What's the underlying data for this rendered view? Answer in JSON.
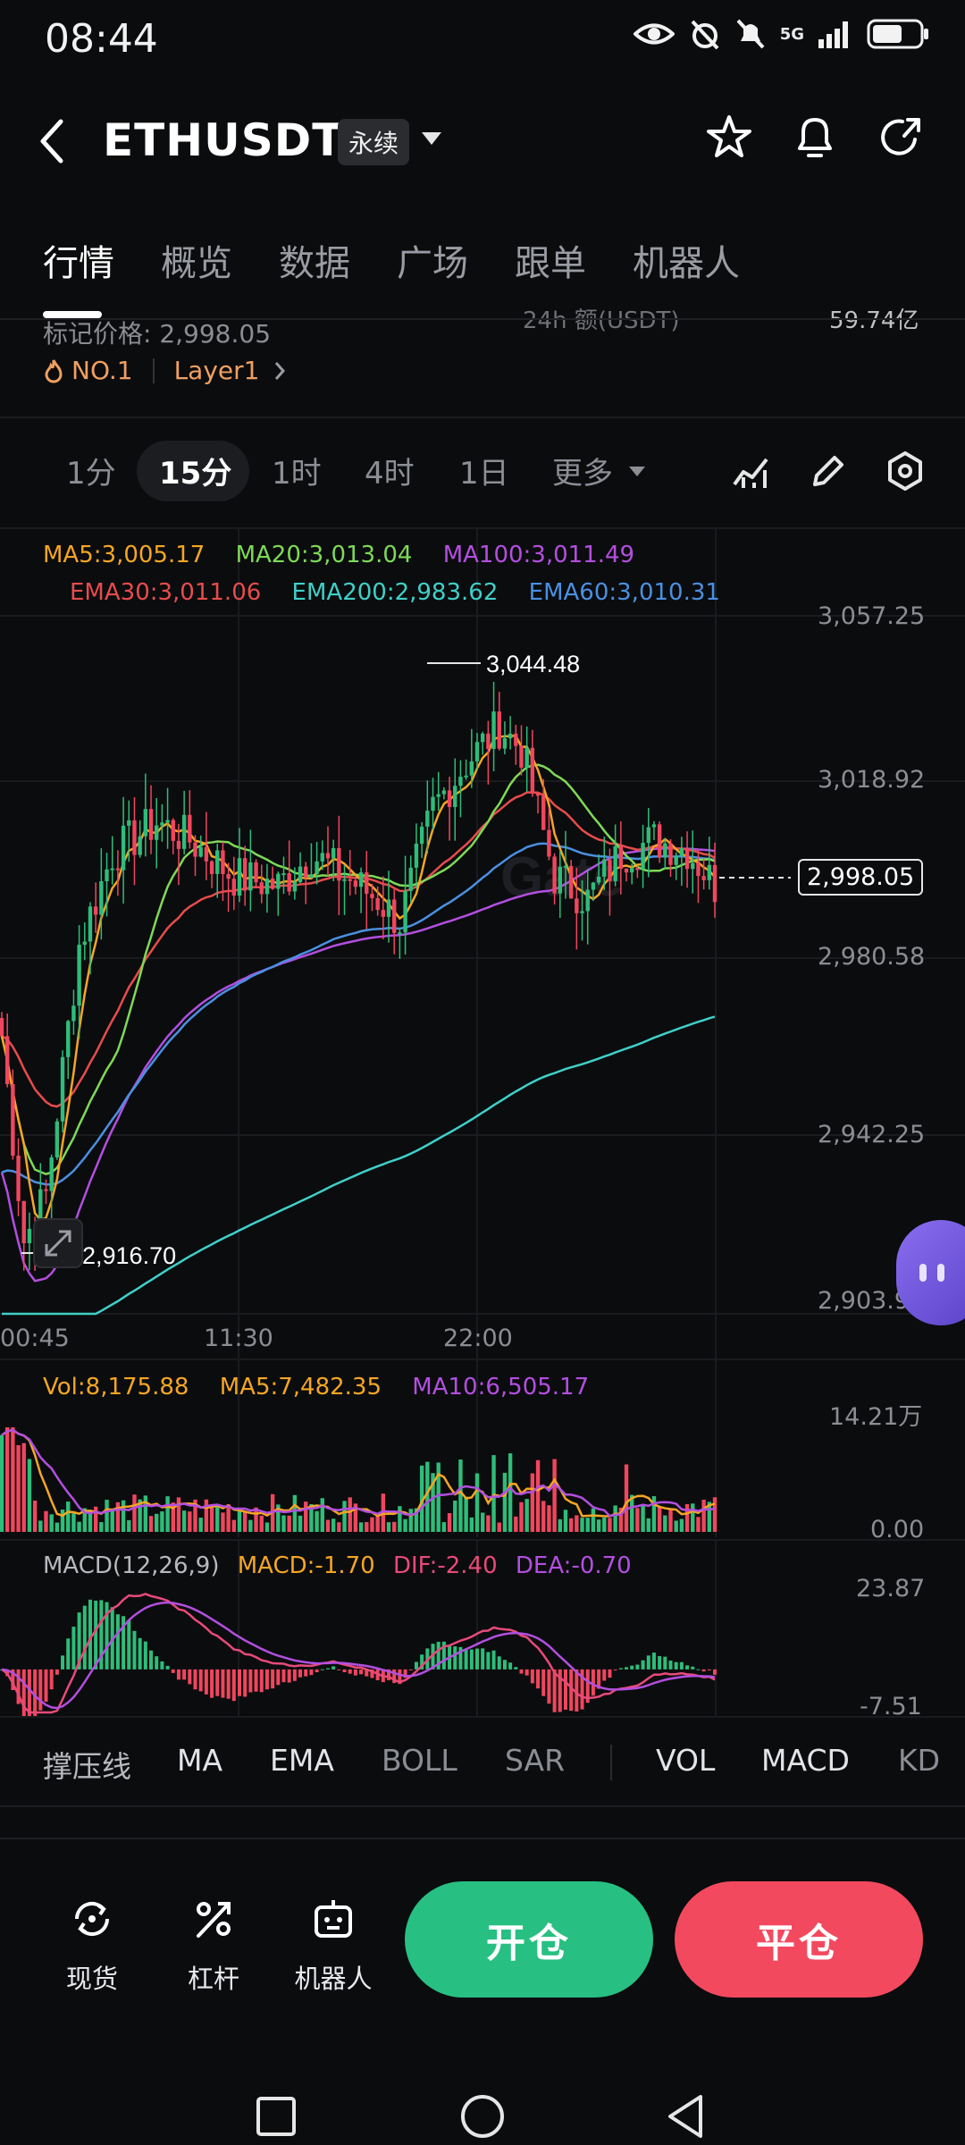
{
  "status_bar": {
    "time": "08:44",
    "network": "5G"
  },
  "header": {
    "symbol": "ETHUSDT",
    "contract_type": "永续"
  },
  "tabs": [
    "行情",
    "概览",
    "数据",
    "广场",
    "跟单",
    "机器人"
  ],
  "info": {
    "mark_price": "标记价格: 2,998.05",
    "rank": "NO.1",
    "sector": "Layer1",
    "partial_right_label": "24h 额(USDT)",
    "partial_right_value": "59.74亿"
  },
  "intervals": {
    "items": [
      "1分",
      "15分",
      "1时",
      "4时",
      "1日"
    ],
    "active": "15分",
    "more": "更多"
  },
  "legend_main": {
    "ma5": "MA5:3,005.17",
    "ma20": "MA20:3,013.04",
    "ma100": "MA100:3,011.49",
    "ema30": "EMA30:3,011.06",
    "ema200": "EMA200:2,983.62",
    "ema60": "EMA60:3,010.31"
  },
  "legend_colors": {
    "ma5": "#f5a623",
    "ma20": "#7ed957",
    "ma100": "#b34fe0",
    "ema30": "#e74c4c",
    "ema200": "#3fd0c8",
    "ema60": "#4a90e2"
  },
  "price_axis": [
    "3,057.25",
    "3,018.92",
    "2,980.58",
    "2,942.25",
    "2,903.92"
  ],
  "time_axis": [
    "00:45",
    "11:30",
    "22:00"
  ],
  "high_label": "3,044.48",
  "low_label": "2,916.70",
  "current_price": "2,998.05",
  "watermark": "Gate",
  "legend_vol": {
    "vol": "Vol:8,175.88",
    "ma5": "MA5:7,482.35",
    "ma10": "MA10:6,505.17"
  },
  "vol_axis": [
    "14.21万",
    "0.00"
  ],
  "legend_macd": {
    "label": "MACD(12,26,9)",
    "macd": "MACD:-1.70",
    "dif": "DIF:-2.40",
    "dea": "DEA:-0.70"
  },
  "macd_axis": [
    "23.87",
    "-7.51"
  ],
  "indicator_tabs": {
    "main": [
      "撑压线",
      "MA",
      "EMA",
      "BOLL",
      "SAR"
    ],
    "sub": [
      "VOL",
      "MACD",
      "KD"
    ]
  },
  "actions": {
    "spot": "现货",
    "leverage": "杠杆",
    "bot": "机器人",
    "open": "开仓",
    "close": "平仓"
  },
  "chart_data": {
    "type": "candlestick",
    "interval": "15分",
    "y_range": [
      2903.92,
      3057.25
    ],
    "y_ticks": [
      3057.25,
      3018.92,
      2980.58,
      2942.25,
      2903.92
    ],
    "x_ticks": [
      "00:45",
      "11:30",
      "22:00"
    ],
    "high": 3044.48,
    "low": 2916.7,
    "last": 2998.05,
    "series": [
      {
        "name": "MA5",
        "last": 3005.17
      },
      {
        "name": "MA20",
        "last": 3013.04
      },
      {
        "name": "MA100",
        "last": 3011.49
      },
      {
        "name": "EMA30",
        "last": 3011.06
      },
      {
        "name": "EMA200",
        "last": 2983.62
      },
      {
        "name": "EMA60",
        "last": 3010.31
      }
    ],
    "volume": {
      "last": 8175.88,
      "ma5": 7482.35,
      "ma10": 6505.17,
      "y_range": [
        0,
        142100
      ]
    },
    "macd": {
      "macd": -1.7,
      "dif": -2.4,
      "dea": -0.7,
      "y_range": [
        -7.51,
        23.87
      ]
    }
  }
}
